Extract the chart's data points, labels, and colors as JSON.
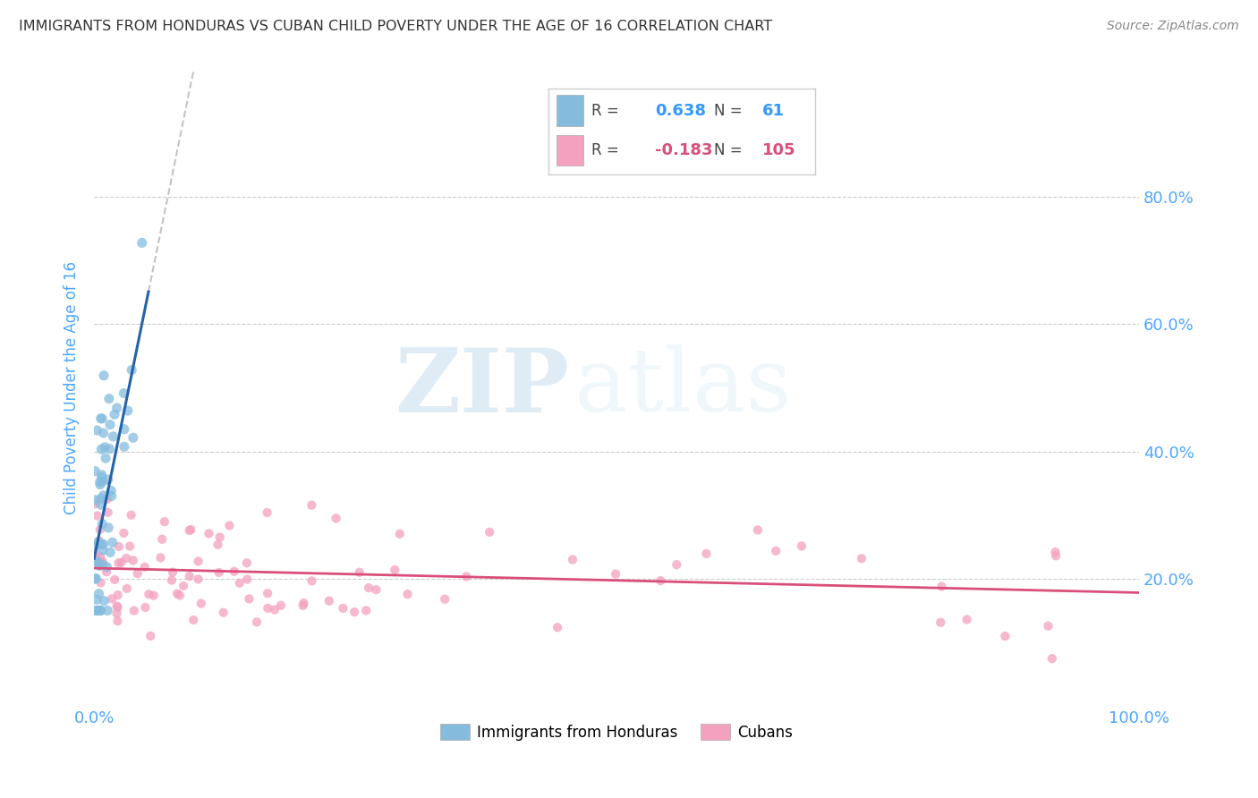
{
  "title": "IMMIGRANTS FROM HONDURAS VS CUBAN CHILD POVERTY UNDER THE AGE OF 16 CORRELATION CHART",
  "source": "Source: ZipAtlas.com",
  "ylabel": "Child Poverty Under the Age of 16",
  "R1": 0.638,
  "N1": 61,
  "R2": -0.183,
  "N2": 105,
  "blue_color": "#85bcde",
  "pink_color": "#f4a0bf",
  "blue_line_color": "#2563a8",
  "pink_line_color": "#d94f7a",
  "watermark_zip": "ZIP",
  "watermark_atlas": "atlas",
  "background_color": "#ffffff",
  "grid_color": "#cccccc",
  "title_color": "#333333",
  "source_color": "#888888",
  "axis_label_color": "#4da6ff",
  "tick_color": "#4da6ff",
  "legend_label1": "Immigrants from Honduras",
  "legend_label2": "Cubans",
  "xlim": [
    0.0,
    1.0
  ],
  "ylim": [
    0.0,
    1.0
  ],
  "xtick_positions": [
    0.0,
    1.0
  ],
  "xtick_labels": [
    "0.0%",
    "100.0%"
  ],
  "ytick_positions": [
    0.2,
    0.4,
    0.6,
    0.8
  ],
  "ytick_labels": [
    "20.0%",
    "40.0%",
    "60.0%",
    "80.0%"
  ]
}
